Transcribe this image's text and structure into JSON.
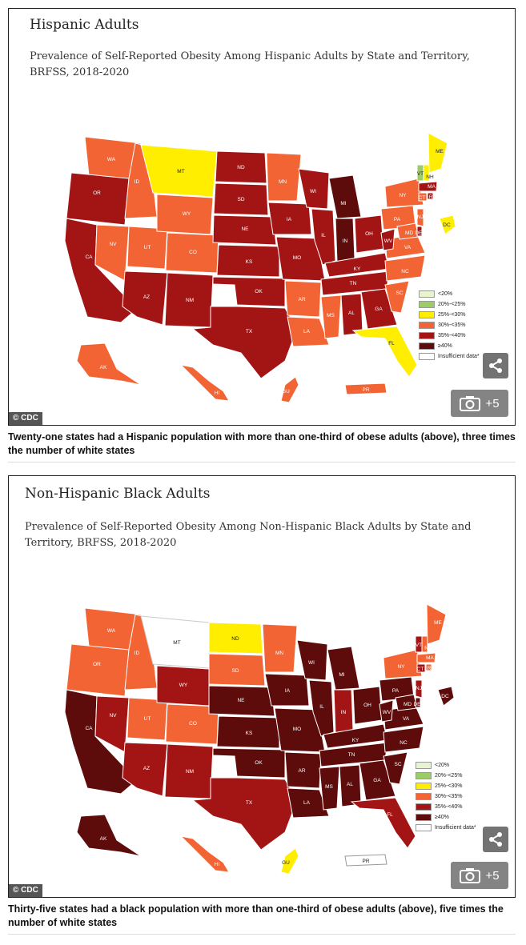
{
  "figures": [
    {
      "title": "Hispanic Adults",
      "subtitle": "Prevalence of Self-Reported Obesity Among Hispanic Adults by State and Territory, BRFSS, 2018-2020",
      "credit": "© CDC",
      "gallery_count": "+5",
      "caption": "Twenty-one states had a Hispanic population with more than one-third of obese adults (above), three times the number of white states"
    },
    {
      "title": "Non-Hispanic Black Adults",
      "subtitle": "Prevalence of Self-Reported Obesity Among Non-Hispanic Black Adults by State and Territory, BRFSS, 2018-2020",
      "credit": "© CDC",
      "gallery_count": "+5",
      "caption": "Thirty-five states had a black population with more than one-third of obese adults (above), five times the number of white states"
    }
  ],
  "legend": [
    {
      "label": "<20%",
      "color": "#e8f4d0"
    },
    {
      "label": "20%-<25%",
      "color": "#9ccc65"
    },
    {
      "label": "25%-<30%",
      "color": "#ffee00"
    },
    {
      "label": "30%-<35%",
      "color": "#f26434"
    },
    {
      "label": "35%-<40%",
      "color": "#a31515"
    },
    {
      "label": "≥40%",
      "color": "#5e0b0b"
    },
    {
      "label": "Insufficient data*",
      "color": "#ffffff"
    }
  ],
  "icons": {
    "share": "share-icon",
    "camera": "camera-icon"
  }
}
